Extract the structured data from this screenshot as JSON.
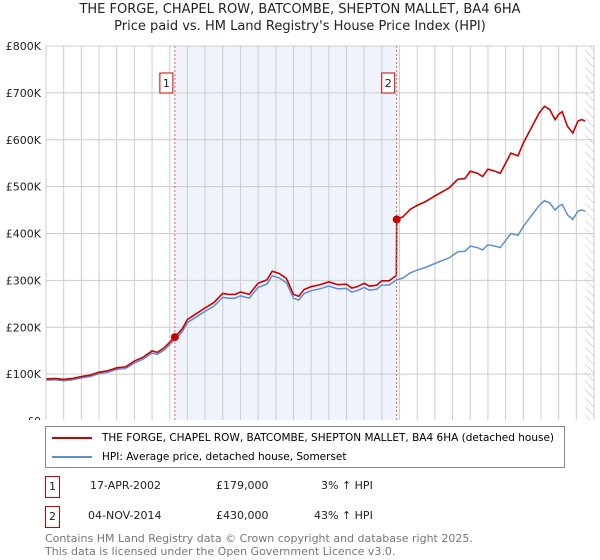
{
  "title": "THE FORGE, CHAPEL ROW, BATCOMBE, SHEPTON MALLET, BA4 6HA",
  "subtitle": "Price paid vs. HM Land Registry's House Price Index (HPI)",
  "chart_data": {
    "type": "line",
    "xlim": [
      1995,
      2026
    ],
    "ylim": [
      0,
      800000
    ],
    "x_ticks": [
      "1995",
      "1996",
      "1997",
      "1998",
      "1999",
      "2000",
      "2001",
      "2002",
      "2003",
      "2004",
      "2005",
      "2006",
      "2007",
      "2008",
      "2009",
      "2010",
      "2011",
      "2012",
      "2013",
      "2014",
      "2015",
      "2016",
      "2017",
      "2018",
      "2019",
      "2020",
      "2021",
      "2022",
      "2023",
      "2024",
      "2025",
      "2026"
    ],
    "y_ticks": [
      {
        "v": 0,
        "label": "£0"
      },
      {
        "v": 100000,
        "label": "£100K"
      },
      {
        "v": 200000,
        "label": "£200K"
      },
      {
        "v": 300000,
        "label": "£300K"
      },
      {
        "v": 400000,
        "label": "£400K"
      },
      {
        "v": 500000,
        "label": "£500K"
      },
      {
        "v": 600000,
        "label": "£600K"
      },
      {
        "v": 700000,
        "label": "£700K"
      },
      {
        "v": 800000,
        "label": "£800K"
      }
    ],
    "shaded_range": [
      2002.29,
      2014.84
    ],
    "forecast_hatch_from": 2025.5,
    "colors": {
      "property": "#cc0000",
      "hpi": "#5b8fd4",
      "shade": "#eef3fc"
    },
    "series": [
      {
        "name": "THE FORGE, CHAPEL ROW, BATCOMBE, SHEPTON MALLET, BA4 6HA (detached house)",
        "key": "property"
      },
      {
        "name": "HPI: Average price, detached house, Somerset",
        "key": "hpi",
        "x": [
          1995,
          1995.5,
          1996,
          1996.5,
          1997,
          1997.5,
          1998,
          1998.5,
          1999,
          1999.5,
          2000,
          2000.5,
          2001,
          2001.3,
          2001.7,
          2002,
          2002.3,
          2002.7,
          2003,
          2003.5,
          2004,
          2004.5,
          2005,
          2005.3,
          2005.7,
          2006,
          2006.5,
          2007,
          2007.5,
          2007.8,
          2008.2,
          2008.6,
          2009,
          2009.3,
          2009.6,
          2010,
          2010.5,
          2011,
          2011.5,
          2012,
          2012.3,
          2012.6,
          2013,
          2013.3,
          2013.7,
          2014,
          2014.4,
          2014.84,
          2015.2,
          2015.6,
          2016,
          2016.5,
          2017,
          2017.4,
          2017.8,
          2018.3,
          2018.7,
          2019,
          2019.4,
          2019.7,
          2020,
          2020.4,
          2020.7,
          2021.1,
          2021.3,
          2021.7,
          2022,
          2022.3,
          2022.6,
          2022.9,
          2023.2,
          2023.5,
          2023.8,
          2024,
          2024.2,
          2024.5,
          2024.8,
          2025.1,
          2025.3,
          2025.5
        ],
        "y": [
          87000,
          88000,
          86000,
          88000,
          92000,
          95000,
          101000,
          104000,
          110000,
          112000,
          124000,
          132000,
          145000,
          142000,
          152000,
          163000,
          174000,
          190000,
          210000,
          222000,
          234000,
          245000,
          264000,
          262000,
          262000,
          267000,
          262000,
          285000,
          292000,
          310000,
          305000,
          295000,
          262000,
          258000,
          272000,
          278000,
          282000,
          288000,
          282000,
          283000,
          275000,
          278000,
          285000,
          279000,
          281000,
          290000,
          290000,
          301000,
          305000,
          316000,
          322000,
          328000,
          336000,
          342000,
          348000,
          361000,
          362000,
          373000,
          370000,
          365000,
          376000,
          373000,
          370000,
          390000,
          400000,
          396000,
          415000,
          430000,
          445000,
          460000,
          470000,
          465000,
          450000,
          458000,
          462000,
          440000,
          430000,
          448000,
          450000,
          448000
        ]
      }
    ],
    "sales": [
      {
        "n": "1",
        "x": 2002.29,
        "y": 179000
      },
      {
        "n": "2",
        "x": 2014.84,
        "y": 430000
      }
    ]
  },
  "legend": {
    "property": "THE FORGE, CHAPEL ROW, BATCOMBE, SHEPTON MALLET, BA4 6HA (detached house)",
    "hpi": "HPI: Average price, detached house, Somerset"
  },
  "transactions": [
    {
      "n": "1",
      "date": "17-APR-2002",
      "price": "£179,000",
      "hpi": "3% ↑ HPI"
    },
    {
      "n": "2",
      "date": "04-NOV-2014",
      "price": "£430,000",
      "hpi": "43% ↑ HPI"
    }
  ],
  "footer": [
    "Contains HM Land Registry data © Crown copyright and database right 2025.",
    "This data is licensed under the Open Government Licence v3.0."
  ]
}
